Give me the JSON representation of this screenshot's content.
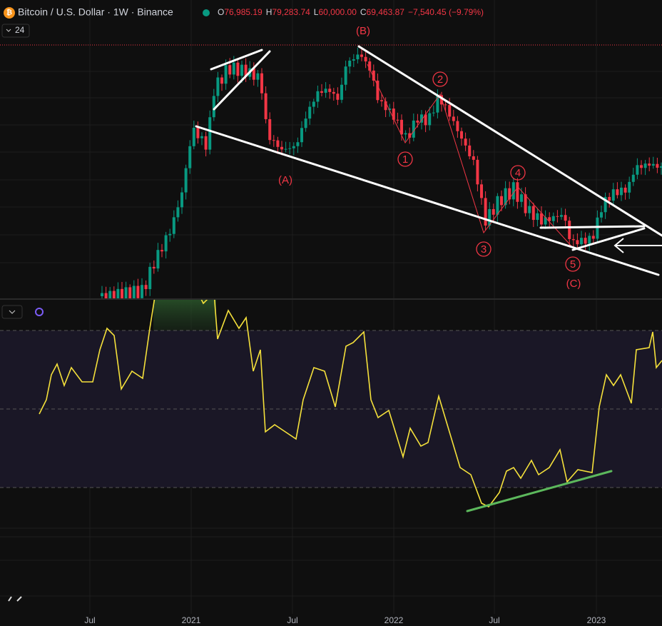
{
  "header": {
    "symbol": "Bitcoin / U.S. Dollar · 1W · Binance",
    "open_label": "O",
    "open": "76,985.19",
    "high_label": "H",
    "high": "79,283.74",
    "low_label": "L",
    "low": "60,000.00",
    "close_label": "C",
    "close": "69,463.87",
    "change": "−7,540.45 (−9.79%)"
  },
  "interval_badge": "24",
  "annotations": {
    "wave_b": "(B)",
    "wave_a": "(A)",
    "wave_c": "(C)",
    "wave_1": "1",
    "wave_2": "2",
    "wave_3": "3",
    "wave_4": "4",
    "wave_5": "5"
  },
  "x_axis": [
    "Jul",
    "2021",
    "Jul",
    "2022",
    "Jul",
    "2023"
  ]
}
